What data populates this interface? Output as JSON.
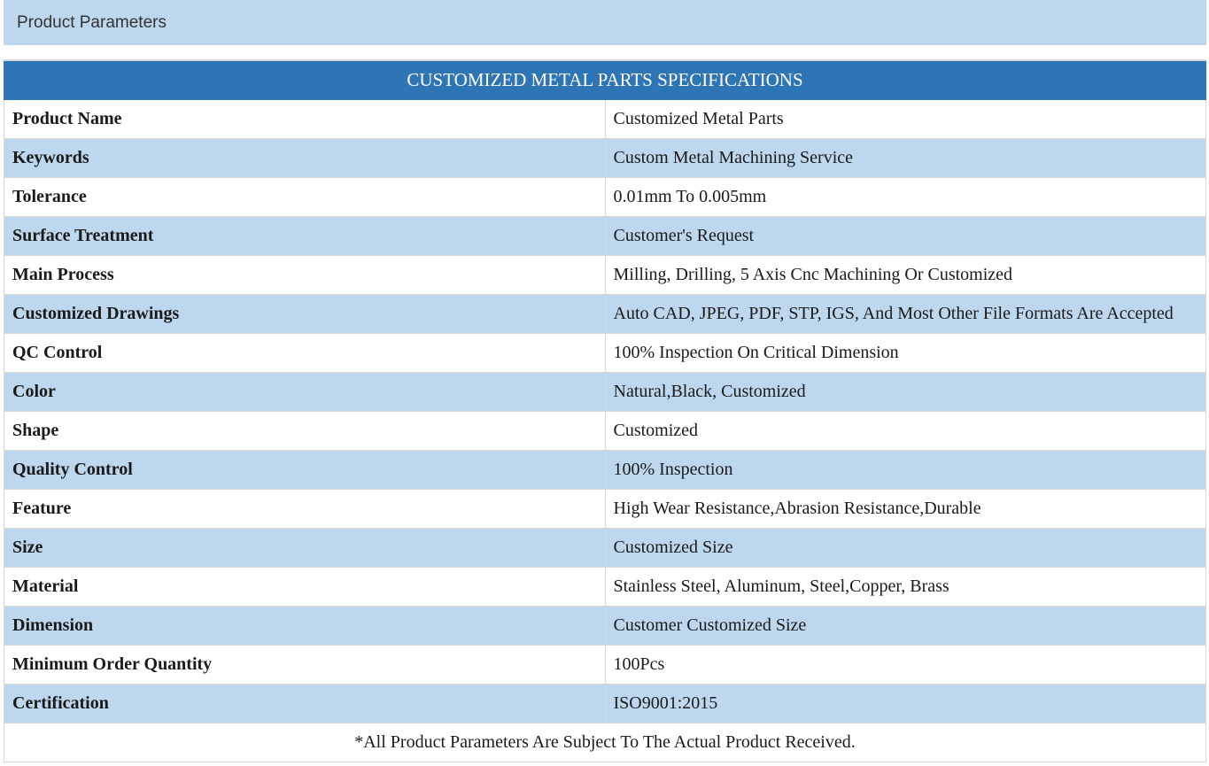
{
  "section": {
    "title": "Product Parameters"
  },
  "table": {
    "title": "CUSTOMIZED METAL PARTS SPECIFICATIONS",
    "rows": [
      {
        "label": "Product Name",
        "value": "Customized  Metal Parts"
      },
      {
        "label": "Keywords",
        "value": "Custom Metal Machining Service"
      },
      {
        "label": "Tolerance",
        "value": "0.01mm To 0.005mm"
      },
      {
        "label": "Surface Treatment",
        "value": "Customer's Request"
      },
      {
        "label": "Main Process",
        "value": "Milling, Drilling, 5 Axis Cnc Machining Or Customized"
      },
      {
        "label": "Customized Drawings",
        "value": "Auto CAD, JPEG, PDF, STP, IGS, And Most Other File Formats Are Accepted"
      },
      {
        "label": "QC Control",
        "value": "100% Inspection On Critical Dimension"
      },
      {
        "label": "Color",
        "value": "Natural,Black, Customized"
      },
      {
        "label": "Shape",
        "value": "Customized"
      },
      {
        "label": "Quality Control",
        "value": "100% Inspection"
      },
      {
        "label": "Feature",
        "value": "High Wear Resistance,Abrasion Resistance,Durable"
      },
      {
        "label": "Size",
        "value": "Customized Size"
      },
      {
        "label": "Material",
        "value": "Stainless Steel, Aluminum, Steel,Copper, Brass"
      },
      {
        "label": "Dimension",
        "value": "Customer Customized Size"
      },
      {
        "label": "Minimum Order Quantity",
        "value": "100Pcs"
      },
      {
        "label": "Certification",
        "value": "ISO9001:2015"
      }
    ],
    "note": "*All Product Parameters Are Subject To The Actual Product Received."
  },
  "colors": {
    "header_bg": "#bdd7ee",
    "title_bg": "#2e75b6",
    "alt_row_bg": "#bdd7ee",
    "border": "#d9d9d9"
  }
}
